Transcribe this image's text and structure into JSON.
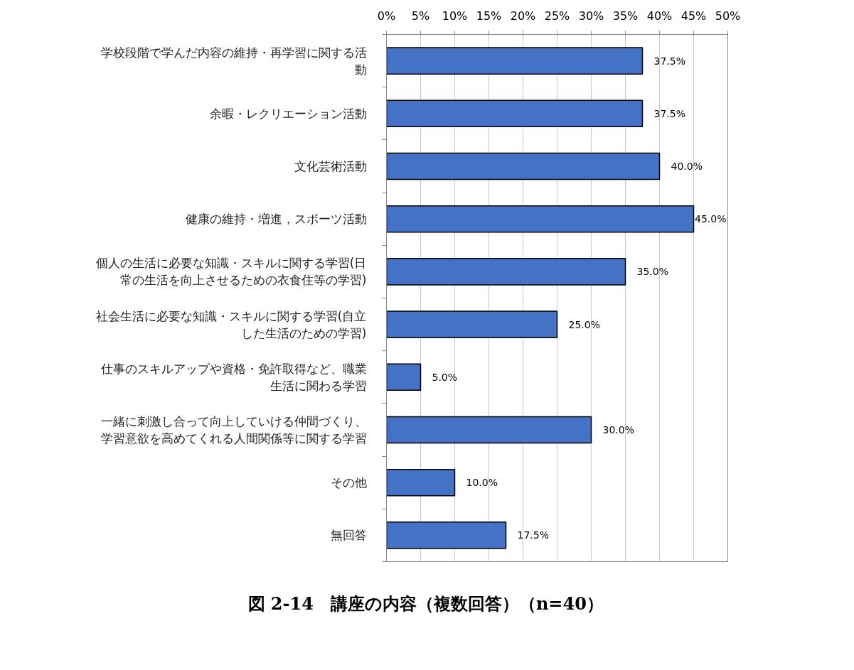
{
  "chart_data": {
    "type": "bar",
    "orientation": "horizontal",
    "title": "図 2-14　講座の内容（複数回答）（n=40）",
    "categories": [
      "学校段階で学んだ内容の維持・再学習に関する活動",
      "余暇・レクリエーション活動",
      "文化芸術活動",
      "健康の維持・増進，スポーツ活動",
      "個人の生活に必要な知識・スキルに関する学習(日常の生活を向上させるための衣食住等の学習)",
      "社会生活に必要な知識・スキルに関する学習(自立した生活のための学習)",
      "仕事のスキルアップや資格・免許取得など、職業生活に関わる学習",
      "一緒に刺激し合って向上していける仲間づくり、学習意欲を高めてくれる人間関係等に関する学習",
      "その他",
      "無回答"
    ],
    "values": [
      37.5,
      37.5,
      40.0,
      45.0,
      35.0,
      25.0,
      5.0,
      30.0,
      10.0,
      17.5
    ],
    "value_labels": [
      "37.5%",
      "37.5%",
      "40.0%",
      "45.0%",
      "35.0%",
      "25.0%",
      "5.0%",
      "30.0%",
      "10.0%",
      "17.5%"
    ],
    "color": "#4472c4",
    "xlim": [
      0,
      50
    ],
    "xticks": [
      {
        "value": 0,
        "label": "0%"
      },
      {
        "value": 5,
        "label": "5%"
      },
      {
        "value": 10,
        "label": "10%"
      },
      {
        "value": 15,
        "label": "15%"
      },
      {
        "value": 20,
        "label": "20%"
      },
      {
        "value": 25,
        "label": "25%"
      },
      {
        "value": 30,
        "label": "30%"
      },
      {
        "value": 35,
        "label": "35%"
      },
      {
        "value": 40,
        "label": "40%"
      },
      {
        "value": 45,
        "label": "45%"
      },
      {
        "value": 50,
        "label": "50%"
      }
    ],
    "grid": "x"
  }
}
